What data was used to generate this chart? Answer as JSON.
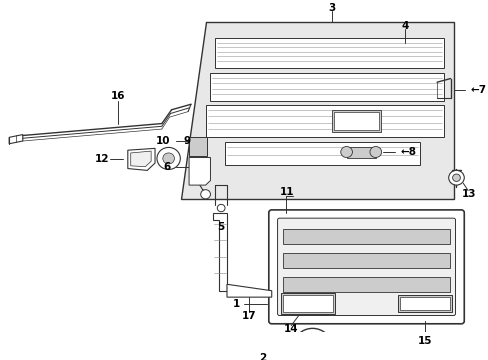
{
  "bg_color": "#ffffff",
  "line_color": "#333333",
  "gray_fill": "#e8e8e8",
  "dark_gray": "#aaaaaa",
  "mid_gray": "#cccccc",
  "light_gray": "#f0f0f0"
}
